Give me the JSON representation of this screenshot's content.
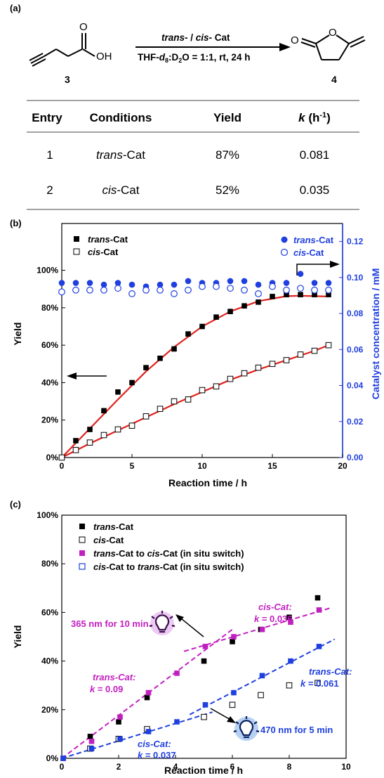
{
  "panel_a": {
    "label": "(a)",
    "reactant_label": "3",
    "product_label": "4",
    "arrow_top": "trans- / cis- Cat",
    "arrow_bottom": "THF-d8:D2O = 1:1, rt, 24 h",
    "table": {
      "headers": [
        "Entry",
        "Conditions",
        "Yield",
        "k (h-1)"
      ],
      "rows": [
        {
          "entry": "1",
          "cond_italic": "trans",
          "cond_rest": "-Cat",
          "yield": "87%",
          "k": "0.081"
        },
        {
          "entry": "2",
          "cond_italic": "cis",
          "cond_rest": "-Cat",
          "yield": "52%",
          "k": "0.035"
        }
      ]
    }
  },
  "chart_data": [
    {
      "panel": "(b)",
      "type": "scatter",
      "xlabel": "Reaction time / h",
      "ylabel": "Yield",
      "ylabel_right": "Catalyst concentration / mM",
      "xlim": [
        0,
        20
      ],
      "ylim": [
        0,
        1.25
      ],
      "ylim_right": [
        0,
        0.13
      ],
      "xticks": [
        0,
        5,
        10,
        15,
        20
      ],
      "yticks": [
        "0%",
        "20%",
        "40%",
        "60%",
        "80%",
        "100%"
      ],
      "yticks_right": [
        "0.00",
        "0.02",
        "0.04",
        "0.06",
        "0.08",
        "0.10",
        "0.12"
      ],
      "legend_left": [
        "trans-Cat",
        "cis-Cat"
      ],
      "legend_right": [
        "trans-Cat",
        "cis-Cat"
      ],
      "series": [
        {
          "name": "trans-Cat",
          "axis": "left",
          "marker": "filled-square",
          "color": "#000000",
          "x": [
            0,
            1,
            2,
            3,
            4,
            5,
            6,
            7,
            8,
            9,
            10,
            11,
            12,
            13,
            14,
            15,
            16,
            17,
            18,
            19
          ],
          "y": [
            0,
            0.09,
            0.15,
            0.25,
            0.35,
            0.4,
            0.48,
            0.53,
            0.58,
            0.66,
            0.7,
            0.75,
            0.78,
            0.81,
            0.83,
            0.86,
            0.87,
            0.87,
            0.87,
            0.87
          ]
        },
        {
          "name": "cis-Cat",
          "axis": "left",
          "marker": "open-square",
          "color": "#000000",
          "x": [
            0,
            1,
            2,
            3,
            4,
            5,
            6,
            7,
            8,
            9,
            10,
            11,
            12,
            13,
            14,
            15,
            16,
            17,
            18,
            19
          ],
          "y": [
            0,
            0.04,
            0.08,
            0.12,
            0.15,
            0.17,
            0.22,
            0.26,
            0.3,
            0.31,
            0.36,
            0.38,
            0.42,
            0.45,
            0.48,
            0.5,
            0.52,
            0.55,
            0.57,
            0.6
          ]
        },
        {
          "name": "trans-Cat",
          "axis": "right",
          "marker": "filled-circle",
          "color": "#1f3fe0",
          "x": [
            0,
            1,
            2,
            3,
            4,
            5,
            6,
            7,
            8,
            9,
            10,
            11,
            12,
            13,
            14,
            15,
            16,
            17,
            18,
            19
          ],
          "y": [
            0.097,
            0.097,
            0.097,
            0.096,
            0.097,
            0.096,
            0.095,
            0.096,
            0.096,
            0.098,
            0.097,
            0.097,
            0.098,
            0.098,
            0.096,
            0.097,
            0.097,
            0.102,
            0.097,
            0.097
          ]
        },
        {
          "name": "cis-Cat",
          "axis": "right",
          "marker": "open-circle",
          "color": "#1f3fe0",
          "x": [
            0,
            1,
            2,
            3,
            4,
            5,
            6,
            7,
            8,
            9,
            10,
            11,
            12,
            13,
            14,
            15,
            16,
            17,
            18,
            19
          ],
          "y": [
            0.092,
            0.093,
            0.093,
            0.093,
            0.094,
            0.091,
            0.093,
            0.093,
            0.091,
            0.093,
            0.095,
            0.095,
            0.094,
            0.093,
            0.091,
            0.095,
            0.093,
            0.094,
            0.093,
            0.093
          ]
        },
        {
          "name": "trans-Cat fit",
          "axis": "left",
          "marker": "line",
          "color": "#e0201c",
          "x": [
            0,
            2,
            4,
            6,
            8,
            10,
            12,
            14,
            16,
            17,
            18,
            19
          ],
          "y": [
            0,
            0.155,
            0.31,
            0.46,
            0.59,
            0.7,
            0.78,
            0.835,
            0.862,
            0.864,
            0.862,
            0.86
          ]
        },
        {
          "name": "cis-Cat fit",
          "axis": "left",
          "marker": "line",
          "color": "#e0201c",
          "x": [
            0,
            2,
            4,
            6,
            8,
            10,
            12,
            14,
            16,
            18,
            19
          ],
          "y": [
            0,
            0.075,
            0.145,
            0.215,
            0.285,
            0.35,
            0.415,
            0.47,
            0.52,
            0.57,
            0.6
          ]
        }
      ],
      "annotations": [
        "←",
        "→"
      ]
    },
    {
      "panel": "(c)",
      "type": "scatter",
      "xlabel": "Reaction time / h",
      "ylabel": "Yield",
      "xlim": [
        0,
        10
      ],
      "ylim": [
        0,
        1.0
      ],
      "xticks": [
        0,
        2,
        4,
        6,
        8,
        10
      ],
      "yticks": [
        "0%",
        "20%",
        "40%",
        "60%",
        "80%",
        "100%"
      ],
      "series": [
        {
          "name": "trans-Cat",
          "marker": "filled-square",
          "color": "#000000",
          "x": [
            1,
            2,
            3,
            5,
            6,
            7,
            8,
            9
          ],
          "y": [
            0.09,
            0.15,
            0.25,
            0.4,
            0.48,
            0.53,
            0.58,
            0.66
          ]
        },
        {
          "name": "cis-Cat",
          "marker": "open-square",
          "color": "#000000",
          "x": [
            1,
            2,
            3,
            5,
            6,
            7,
            8,
            9
          ],
          "y": [
            0.04,
            0.08,
            0.12,
            0.17,
            0.22,
            0.26,
            0.3,
            0.31
          ]
        },
        {
          "name": "trans-Cat to cis-Cat (in situ switch)",
          "marker": "purple-square",
          "color": "#c21fc0",
          "x": [
            0,
            1,
            2,
            3,
            4,
            5,
            6,
            7,
            8,
            9
          ],
          "y": [
            0,
            0.07,
            0.17,
            0.27,
            0.35,
            0.46,
            0.5,
            0.53,
            0.56,
            0.61
          ]
        },
        {
          "name": "cis-Cat to trans-Cat (in situ switch)",
          "marker": "blue-square",
          "color": "#1f3fe0",
          "x": [
            0,
            1,
            2,
            3,
            4,
            5,
            6,
            7,
            8,
            9
          ],
          "y": [
            0,
            0.04,
            0.08,
            0.11,
            0.15,
            0.22,
            0.27,
            0.34,
            0.4,
            0.46
          ]
        }
      ],
      "fit_lines": [
        {
          "color": "#c21fc0",
          "x": [
            0,
            6
          ],
          "y": [
            0,
            0.53
          ]
        },
        {
          "color": "#c21fc0",
          "x": [
            4.3,
            9.5
          ],
          "y": [
            0.44,
            0.62
          ]
        },
        {
          "color": "#1f3fe0",
          "x": [
            0,
            5.3
          ],
          "y": [
            0,
            0.19
          ]
        },
        {
          "color": "#1f3fe0",
          "x": [
            4.5,
            9.6
          ],
          "y": [
            0.18,
            0.49
          ]
        }
      ],
      "annotations": {
        "cis_fit_top_label": "cis-Cat:",
        "cis_fit_top_k": "k = 0.036",
        "trans_fit_left_label": "trans-Cat:",
        "trans_fit_left_k": "k = 0.09",
        "trans_fit_right_label": "trans-Cat:",
        "trans_fit_right_k": "k = 0.061",
        "cis_fit_bottom_label": "cis-Cat:",
        "cis_fit_bottom_k": "k = 0.037",
        "light_uv": "365 nm for 10 min",
        "light_blue": "470 nm for 5 min"
      }
    }
  ],
  "colors": {
    "red_fit": "#e0201c",
    "blue": "#1f3fe0",
    "purple": "#c21fc0",
    "uv_glow": "#b24dd6"
  }
}
